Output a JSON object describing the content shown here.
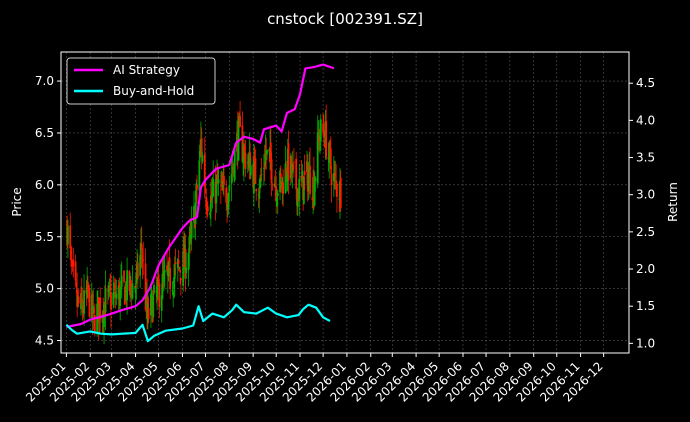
{
  "chart_data": {
    "type": "line",
    "title": "cnstock [002391.SZ]",
    "ylabel": "Price",
    "y2label": "Return",
    "xlabel": "",
    "ylim": [
      4.38,
      7.28
    ],
    "y2lim": [
      0.87,
      4.92
    ],
    "yticks": [
      4.5,
      5.0,
      5.5,
      6.0,
      6.5,
      7.0
    ],
    "ytick_labels": [
      "4.5",
      "5.0",
      "5.5",
      "6.0",
      "6.5",
      "7.0"
    ],
    "y2ticks": [
      1.0,
      1.5,
      2.0,
      2.5,
      3.0,
      3.5,
      4.0,
      4.5
    ],
    "y2tick_labels": [
      "1.0",
      "1.5",
      "2.0",
      "2.5",
      "3.0",
      "3.5",
      "4.0",
      "4.5"
    ],
    "x_months": [
      "2025-01",
      "2025-02",
      "2025-03",
      "2025-04",
      "2025-05",
      "2025-06",
      "2025-07",
      "2025-08",
      "2025-09",
      "2025-10",
      "2025-11",
      "2025-12",
      "2026-01",
      "2026-02",
      "2026-03",
      "2026-04",
      "2026-05",
      "2026-06",
      "2026-07",
      "2026-08",
      "2026-09",
      "2026-10",
      "2026-11",
      "2026-12"
    ],
    "grid": true,
    "legend": "top-left",
    "candle_up_color": "#00b000",
    "candle_down_color": "#ff1a00",
    "price_close": [
      [
        "2025-01-02",
        5.6
      ],
      [
        "2025-01-08",
        5.15
      ],
      [
        "2025-01-15",
        4.85
      ],
      [
        "2025-01-22",
        4.8
      ],
      [
        "2025-01-29",
        4.95
      ],
      [
        "2025-02-05",
        4.7
      ],
      [
        "2025-02-12",
        4.8
      ],
      [
        "2025-02-19",
        4.85
      ],
      [
        "2025-02-26",
        4.9
      ],
      [
        "2025-03-05",
        4.92
      ],
      [
        "2025-03-12",
        4.95
      ],
      [
        "2025-03-19",
        5.0
      ],
      [
        "2025-03-26",
        5.02
      ],
      [
        "2025-04-02",
        5.05
      ],
      [
        "2025-04-09",
        5.4
      ],
      [
        "2025-04-16",
        4.7
      ],
      [
        "2025-04-23",
        4.85
      ],
      [
        "2025-04-30",
        4.95
      ],
      [
        "2025-05-07",
        5.05
      ],
      [
        "2025-05-14",
        5.1
      ],
      [
        "2025-05-21",
        5.12
      ],
      [
        "2025-05-28",
        5.2
      ],
      [
        "2025-06-04",
        5.25
      ],
      [
        "2025-06-11",
        5.4
      ],
      [
        "2025-06-18",
        5.8
      ],
      [
        "2025-06-25",
        6.4
      ],
      [
        "2025-07-02",
        5.9
      ],
      [
        "2025-07-09",
        5.85
      ],
      [
        "2025-07-16",
        6.0
      ],
      [
        "2025-07-23",
        5.9
      ],
      [
        "2025-07-30",
        5.95
      ],
      [
        "2025-08-06",
        6.2
      ],
      [
        "2025-08-13",
        6.5
      ],
      [
        "2025-08-20",
        6.3
      ],
      [
        "2025-08-27",
        6.2
      ],
      [
        "2025-09-03",
        6.1
      ],
      [
        "2025-09-10",
        6.0
      ],
      [
        "2025-09-17",
        6.3
      ],
      [
        "2025-09-24",
        6.2
      ],
      [
        "2025-10-01",
        6.0
      ],
      [
        "2025-10-08",
        6.0
      ],
      [
        "2025-10-15",
        6.2
      ],
      [
        "2025-10-22",
        6.1
      ],
      [
        "2025-10-29",
        5.95
      ],
      [
        "2025-11-05",
        6.0
      ],
      [
        "2025-11-12",
        6.1
      ],
      [
        "2025-11-19",
        6.0
      ],
      [
        "2025-11-26",
        6.5
      ],
      [
        "2025-12-03",
        6.5
      ],
      [
        "2025-12-10",
        6.2
      ],
      [
        "2025-12-17",
        6.0
      ],
      [
        "2025-12-24",
        5.95
      ]
    ],
    "series": [
      {
        "name": "AI Strategy",
        "color": "#ff00ff",
        "axis": "right",
        "points": [
          [
            "2025-01-01",
            1.22
          ],
          [
            "2025-01-20",
            1.26
          ],
          [
            "2025-02-01",
            1.32
          ],
          [
            "2025-02-20",
            1.37
          ],
          [
            "2025-03-01",
            1.4
          ],
          [
            "2025-03-15",
            1.45
          ],
          [
            "2025-04-01",
            1.5
          ],
          [
            "2025-04-10",
            1.58
          ],
          [
            "2025-04-20",
            1.75
          ],
          [
            "2025-05-01",
            2.05
          ],
          [
            "2025-05-15",
            2.3
          ],
          [
            "2025-06-01",
            2.55
          ],
          [
            "2025-06-10",
            2.65
          ],
          [
            "2025-06-20",
            2.7
          ],
          [
            "2025-06-25",
            3.1
          ],
          [
            "2025-07-01",
            3.2
          ],
          [
            "2025-07-15",
            3.35
          ],
          [
            "2025-08-01",
            3.4
          ],
          [
            "2025-08-10",
            3.7
          ],
          [
            "2025-08-20",
            3.78
          ],
          [
            "2025-09-01",
            3.75
          ],
          [
            "2025-09-10",
            3.7
          ],
          [
            "2025-09-15",
            3.88
          ],
          [
            "2025-10-01",
            3.93
          ],
          [
            "2025-10-08",
            3.85
          ],
          [
            "2025-10-15",
            4.1
          ],
          [
            "2025-10-25",
            4.15
          ],
          [
            "2025-11-01",
            4.35
          ],
          [
            "2025-11-05",
            4.55
          ],
          [
            "2025-11-08",
            4.7
          ],
          [
            "2025-11-20",
            4.72
          ],
          [
            "2025-12-01",
            4.75
          ],
          [
            "2025-12-10",
            4.72
          ],
          [
            "2025-12-15",
            4.7
          ]
        ]
      },
      {
        "name": "Buy-and-Hold",
        "color": "#00ffff",
        "axis": "right",
        "points": [
          [
            "2025-01-01",
            1.25
          ],
          [
            "2025-01-08",
            1.18
          ],
          [
            "2025-01-15",
            1.13
          ],
          [
            "2025-02-01",
            1.16
          ],
          [
            "2025-02-15",
            1.13
          ],
          [
            "2025-03-01",
            1.12
          ],
          [
            "2025-03-15",
            1.13
          ],
          [
            "2025-04-01",
            1.14
          ],
          [
            "2025-04-10",
            1.25
          ],
          [
            "2025-04-17",
            1.03
          ],
          [
            "2025-04-25",
            1.1
          ],
          [
            "2025-05-10",
            1.17
          ],
          [
            "2025-06-01",
            1.2
          ],
          [
            "2025-06-15",
            1.24
          ],
          [
            "2025-06-22",
            1.5
          ],
          [
            "2025-06-28",
            1.3
          ],
          [
            "2025-07-10",
            1.4
          ],
          [
            "2025-07-25",
            1.35
          ],
          [
            "2025-08-05",
            1.45
          ],
          [
            "2025-08-10",
            1.52
          ],
          [
            "2025-08-20",
            1.42
          ],
          [
            "2025-09-05",
            1.4
          ],
          [
            "2025-09-20",
            1.48
          ],
          [
            "2025-10-01",
            1.4
          ],
          [
            "2025-10-15",
            1.35
          ],
          [
            "2025-10-30",
            1.38
          ],
          [
            "2025-11-05",
            1.46
          ],
          [
            "2025-11-12",
            1.52
          ],
          [
            "2025-11-22",
            1.48
          ],
          [
            "2025-12-01",
            1.35
          ],
          [
            "2025-12-10",
            1.3
          ]
        ]
      }
    ]
  }
}
